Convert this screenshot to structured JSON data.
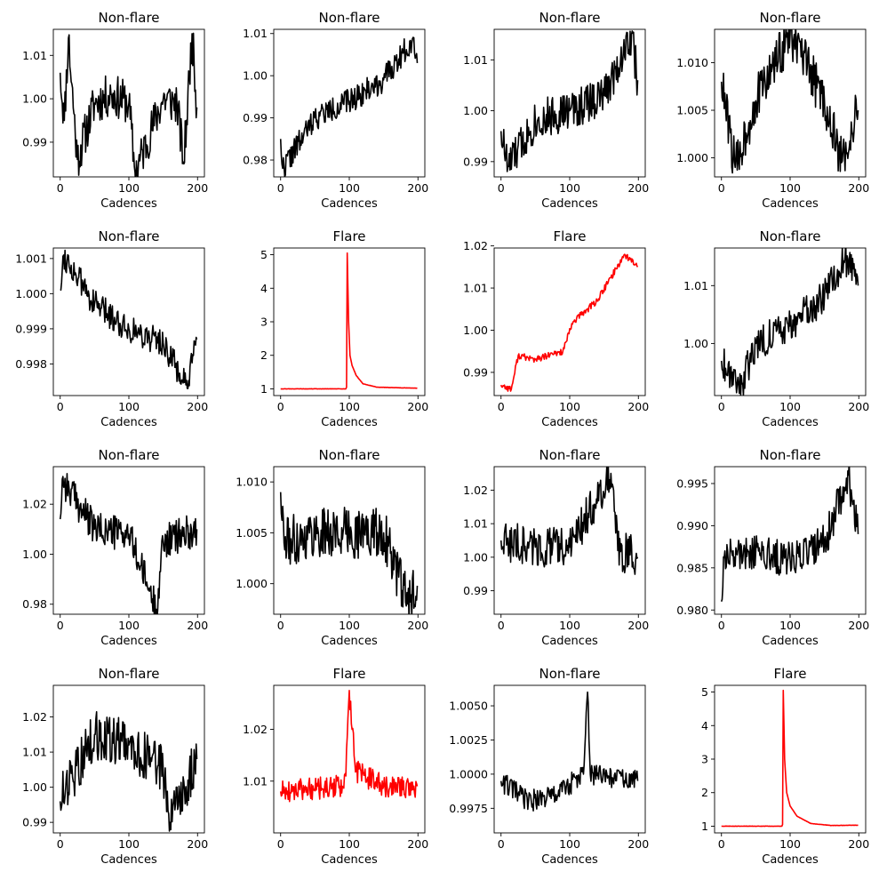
{
  "chart_data": [
    {
      "type": "line",
      "title": "Non-flare",
      "xlabel": "Cadences",
      "color": "#000000",
      "xlim": [
        -10,
        210
      ],
      "ylim": [
        0.982,
        1.016
      ],
      "xticks": [
        0,
        100,
        200
      ],
      "yticks": [
        {
          "v": 0.99,
          "label": "0.99"
        },
        {
          "v": 1.0,
          "label": "1.00"
        },
        {
          "v": 1.01,
          "label": "1.01"
        }
      ],
      "x_range": [
        0,
        199
      ],
      "keypoints": [
        [
          0,
          1.006
        ],
        [
          6,
          0.995
        ],
        [
          12,
          1.014
        ],
        [
          25,
          0.986
        ],
        [
          50,
          0.999
        ],
        [
          75,
          1.001
        ],
        [
          100,
          0.999
        ],
        [
          109,
          0.983
        ],
        [
          150,
          1.0
        ],
        [
          170,
          0.999
        ],
        [
          180,
          0.985
        ],
        [
          192,
          1.015
        ],
        [
          199,
          0.998
        ]
      ],
      "noise": 0.005,
      "seed": 11
    },
    {
      "type": "line",
      "title": "Non-flare",
      "xlabel": "Cadences",
      "color": "#000000",
      "xlim": [
        -10,
        210
      ],
      "ylim": [
        0.976,
        1.011
      ],
      "xticks": [
        0,
        100,
        200
      ],
      "yticks": [
        {
          "v": 0.98,
          "label": "0.98"
        },
        {
          "v": 0.99,
          "label": "0.99"
        },
        {
          "v": 1.0,
          "label": "1.00"
        },
        {
          "v": 1.01,
          "label": "1.01"
        }
      ],
      "x_range": [
        0,
        199
      ],
      "keypoints": [
        [
          0,
          0.985
        ],
        [
          3,
          0.978
        ],
        [
          50,
          0.99
        ],
        [
          100,
          0.994
        ],
        [
          150,
          0.999
        ],
        [
          194,
          1.009
        ],
        [
          199,
          1.003
        ]
      ],
      "noise": 0.003,
      "seed": 22
    },
    {
      "type": "line",
      "title": "Non-flare",
      "xlabel": "Cadences",
      "color": "#000000",
      "xlim": [
        -10,
        210
      ],
      "ylim": [
        0.987,
        1.016
      ],
      "xticks": [
        0,
        100,
        200
      ],
      "yticks": [
        {
          "v": 0.99,
          "label": "0.99"
        },
        {
          "v": 1.0,
          "label": "1.00"
        },
        {
          "v": 1.01,
          "label": "1.01"
        }
      ],
      "x_range": [
        0,
        199
      ],
      "keypoints": [
        [
          0,
          0.996
        ],
        [
          10,
          0.989
        ],
        [
          50,
          0.998
        ],
        [
          100,
          1.0
        ],
        [
          150,
          1.003
        ],
        [
          190,
          1.015
        ],
        [
          199,
          1.006
        ]
      ],
      "noise": 0.004,
      "seed": 33
    },
    {
      "type": "line",
      "title": "Non-flare",
      "xlabel": "Cadences",
      "color": "#000000",
      "xlim": [
        -10,
        210
      ],
      "ylim": [
        0.998,
        1.0135
      ],
      "xticks": [
        0,
        100,
        200
      ],
      "yticks": [
        {
          "v": 1.0,
          "label": "1.000"
        },
        {
          "v": 1.005,
          "label": "1.005"
        },
        {
          "v": 1.01,
          "label": "1.010"
        }
      ],
      "x_range": [
        0,
        199
      ],
      "keypoints": [
        [
          0,
          1.008
        ],
        [
          20,
          0.999
        ],
        [
          50,
          1.006
        ],
        [
          100,
          1.013
        ],
        [
          150,
          1.006
        ],
        [
          175,
          0.9995
        ],
        [
          199,
          1.005
        ]
      ],
      "noise": 0.0025,
      "seed": 44
    },
    {
      "type": "line",
      "title": "Non-flare",
      "xlabel": "Cadences",
      "color": "#000000",
      "xlim": [
        -10,
        210
      ],
      "ylim": [
        0.9971,
        1.0013
      ],
      "xticks": [
        0,
        100,
        200
      ],
      "yticks": [
        {
          "v": 0.998,
          "label": "0.998"
        },
        {
          "v": 0.999,
          "label": "0.999"
        },
        {
          "v": 1.0,
          "label": "1.000"
        },
        {
          "v": 1.001,
          "label": "1.001"
        }
      ],
      "x_range": [
        0,
        199
      ],
      "keypoints": [
        [
          0,
          1.0001
        ],
        [
          5,
          1.0011
        ],
        [
          50,
          0.9997
        ],
        [
          100,
          0.999
        ],
        [
          150,
          0.9986
        ],
        [
          185,
          0.9973
        ],
        [
          199,
          0.9987
        ]
      ],
      "noise": 0.0004,
      "seed": 55
    },
    {
      "type": "line",
      "title": "Flare",
      "xlabel": "Cadences",
      "color": "#ff0000",
      "xlim": [
        -10,
        210
      ],
      "ylim": [
        0.8,
        5.2
      ],
      "xticks": [
        0,
        100,
        200
      ],
      "yticks": [
        {
          "v": 1,
          "label": "1"
        },
        {
          "v": 2,
          "label": "2"
        },
        {
          "v": 3,
          "label": "3"
        },
        {
          "v": 4,
          "label": "4"
        },
        {
          "v": 5,
          "label": "5"
        }
      ],
      "x_range": [
        0,
        199
      ],
      "keypoints": [
        [
          0,
          1.0
        ],
        [
          95,
          1.0
        ],
        [
          96,
          1.05
        ],
        [
          97,
          5.05
        ],
        [
          99,
          3.0
        ],
        [
          101,
          2.0
        ],
        [
          104,
          1.7
        ],
        [
          110,
          1.4
        ],
        [
          120,
          1.15
        ],
        [
          140,
          1.05
        ],
        [
          199,
          1.02
        ]
      ],
      "noise": 0.004,
      "seed": 66
    },
    {
      "type": "line",
      "title": "Flare",
      "xlabel": "Cadences",
      "color": "#ff0000",
      "xlim": [
        -10,
        210
      ],
      "ylim": [
        0.9845,
        1.0195
      ],
      "xticks": [
        0,
        100,
        200
      ],
      "yticks": [
        {
          "v": 0.99,
          "label": "0.99"
        },
        {
          "v": 1.0,
          "label": "1.00"
        },
        {
          "v": 1.01,
          "label": "1.01"
        },
        {
          "v": 1.02,
          "label": "1.02"
        }
      ],
      "x_range": [
        0,
        199
      ],
      "keypoints": [
        [
          0,
          0.987
        ],
        [
          15,
          0.986
        ],
        [
          25,
          0.994
        ],
        [
          50,
          0.993
        ],
        [
          90,
          0.995
        ],
        [
          105,
          1.002
        ],
        [
          140,
          1.007
        ],
        [
          180,
          1.018
        ],
        [
          199,
          1.015
        ]
      ],
      "noise": 0.0008,
      "seed": 77
    },
    {
      "type": "line",
      "title": "Non-flare",
      "xlabel": "Cadences",
      "color": "#000000",
      "xlim": [
        -10,
        210
      ],
      "ylim": [
        0.991,
        1.0165
      ],
      "xticks": [
        0,
        100,
        200
      ],
      "yticks": [
        {
          "v": 1.0,
          "label": "1.00"
        },
        {
          "v": 1.01,
          "label": "1.01"
        }
      ],
      "x_range": [
        0,
        199
      ],
      "keypoints": [
        [
          0,
          0.997
        ],
        [
          30,
          0.993
        ],
        [
          50,
          1.0
        ],
        [
          100,
          1.003
        ],
        [
          150,
          1.008
        ],
        [
          180,
          1.015
        ],
        [
          199,
          1.01
        ]
      ],
      "noise": 0.003,
      "seed": 88
    },
    {
      "type": "line",
      "title": "Non-flare",
      "xlabel": "Cadences",
      "color": "#000000",
      "xlim": [
        -10,
        210
      ],
      "ylim": [
        0.976,
        1.035
      ],
      "xticks": [
        0,
        100,
        200
      ],
      "yticks": [
        {
          "v": 0.98,
          "label": "0.98"
        },
        {
          "v": 1.0,
          "label": "1.00"
        },
        {
          "v": 1.02,
          "label": "1.02"
        }
      ],
      "x_range": [
        0,
        199
      ],
      "keypoints": [
        [
          0,
          1.014
        ],
        [
          3,
          1.03
        ],
        [
          50,
          1.01
        ],
        [
          100,
          1.008
        ],
        [
          140,
          0.978
        ],
        [
          150,
          1.005
        ],
        [
          199,
          1.01
        ]
      ],
      "noise": 0.007,
      "seed": 99
    },
    {
      "type": "line",
      "title": "Non-flare",
      "xlabel": "Cadences",
      "color": "#000000",
      "xlim": [
        -10,
        210
      ],
      "ylim": [
        0.997,
        1.0115
      ],
      "xticks": [
        0,
        100,
        200
      ],
      "yticks": [
        {
          "v": 1.0,
          "label": "1.000"
        },
        {
          "v": 1.005,
          "label": "1.005"
        },
        {
          "v": 1.01,
          "label": "1.010"
        }
      ],
      "x_range": [
        0,
        199
      ],
      "keypoints": [
        [
          0,
          1.009
        ],
        [
          5,
          1.004
        ],
        [
          50,
          1.005
        ],
        [
          100,
          1.005
        ],
        [
          150,
          1.005
        ],
        [
          185,
          0.998
        ],
        [
          199,
          0.9998
        ]
      ],
      "noise": 0.0025,
      "seed": 111
    },
    {
      "type": "line",
      "title": "Non-flare",
      "xlabel": "Cadences",
      "color": "#000000",
      "xlim": [
        -10,
        210
      ],
      "ylim": [
        0.983,
        1.027
      ],
      "xticks": [
        0,
        100,
        200
      ],
      "yticks": [
        {
          "v": 0.99,
          "label": "0.99"
        },
        {
          "v": 1.0,
          "label": "1.00"
        },
        {
          "v": 1.01,
          "label": "1.01"
        },
        {
          "v": 1.02,
          "label": "1.02"
        }
      ],
      "x_range": [
        0,
        199
      ],
      "keypoints": [
        [
          0,
          1.005
        ],
        [
          50,
          1.003
        ],
        [
          100,
          1.003
        ],
        [
          160,
          1.025
        ],
        [
          170,
          1.002
        ],
        [
          199,
          1.0
        ]
      ],
      "noise": 0.006,
      "seed": 122
    },
    {
      "type": "line",
      "title": "Non-flare",
      "xlabel": "Cadences",
      "color": "#000000",
      "xlim": [
        -10,
        210
      ],
      "ylim": [
        0.9795,
        0.997
      ],
      "xticks": [
        0,
        100,
        200
      ],
      "yticks": [
        {
          "v": 0.98,
          "label": "0.980"
        },
        {
          "v": 0.985,
          "label": "0.985"
        },
        {
          "v": 0.99,
          "label": "0.990"
        },
        {
          "v": 0.995,
          "label": "0.995"
        }
      ],
      "x_range": [
        0,
        199
      ],
      "keypoints": [
        [
          0,
          0.981
        ],
        [
          5,
          0.987
        ],
        [
          50,
          0.987
        ],
        [
          100,
          0.986
        ],
        [
          150,
          0.988
        ],
        [
          185,
          0.996
        ],
        [
          199,
          0.989
        ]
      ],
      "noise": 0.0022,
      "seed": 133
    },
    {
      "type": "line",
      "title": "Non-flare",
      "xlabel": "Cadences",
      "color": "#000000",
      "xlim": [
        -10,
        210
      ],
      "ylim": [
        0.987,
        1.029
      ],
      "xticks": [
        0,
        100,
        200
      ],
      "yticks": [
        {
          "v": 0.99,
          "label": "0.99"
        },
        {
          "v": 1.0,
          "label": "1.00"
        },
        {
          "v": 1.01,
          "label": "1.01"
        },
        {
          "v": 1.02,
          "label": "1.02"
        }
      ],
      "x_range": [
        0,
        199
      ],
      "keypoints": [
        [
          0,
          0.996
        ],
        [
          50,
          1.015
        ],
        [
          100,
          1.012
        ],
        [
          150,
          1.005
        ],
        [
          160,
          0.99
        ],
        [
          199,
          1.008
        ]
      ],
      "noise": 0.007,
      "seed": 144
    },
    {
      "type": "line",
      "title": "Flare",
      "xlabel": "Cadences",
      "color": "#ff0000",
      "xlim": [
        -10,
        210
      ],
      "ylim": [
        1.0,
        1.0285
      ],
      "xticks": [
        0,
        100,
        200
      ],
      "yticks": [
        {
          "v": 1.01,
          "label": "1.01"
        },
        {
          "v": 1.02,
          "label": "1.02"
        }
      ],
      "x_range": [
        0,
        199
      ],
      "keypoints": [
        [
          0,
          1.008
        ],
        [
          90,
          1.009
        ],
        [
          95,
          1.011
        ],
        [
          100,
          1.0275
        ],
        [
          104,
          1.02
        ],
        [
          110,
          1.012
        ],
        [
          150,
          1.009
        ],
        [
          199,
          1.009
        ]
      ],
      "noise": 0.0022,
      "seed": 155
    },
    {
      "type": "line",
      "title": "Non-flare",
      "xlabel": "Cadences",
      "color": "#000000",
      "xlim": [
        -10,
        210
      ],
      "ylim": [
        0.9957,
        1.0065
      ],
      "xticks": [
        0,
        100,
        200
      ],
      "yticks": [
        {
          "v": 0.9975,
          "label": "0.9975"
        },
        {
          "v": 1.0,
          "label": "1.0000"
        },
        {
          "v": 1.0025,
          "label": "1.0025"
        },
        {
          "v": 1.005,
          "label": "1.0050"
        }
      ],
      "x_range": [
        0,
        199
      ],
      "keypoints": [
        [
          0,
          0.9995
        ],
        [
          40,
          0.998
        ],
        [
          80,
          0.9985
        ],
        [
          120,
          1.0
        ],
        [
          126,
          1.006
        ],
        [
          130,
          1.0
        ],
        [
          199,
          0.9995
        ]
      ],
      "noise": 0.0008,
      "seed": 166
    },
    {
      "type": "line",
      "title": "Flare",
      "xlabel": "Cadences",
      "color": "#ff0000",
      "xlim": [
        -10,
        210
      ],
      "ylim": [
        0.8,
        5.2
      ],
      "xticks": [
        0,
        100,
        200
      ],
      "yticks": [
        {
          "v": 1,
          "label": "1"
        },
        {
          "v": 2,
          "label": "2"
        },
        {
          "v": 3,
          "label": "3"
        },
        {
          "v": 4,
          "label": "4"
        },
        {
          "v": 5,
          "label": "5"
        }
      ],
      "x_range": [
        0,
        199
      ],
      "keypoints": [
        [
          0,
          1.0
        ],
        [
          88,
          1.0
        ],
        [
          89,
          1.05
        ],
        [
          90,
          5.05
        ],
        [
          92,
          3.0
        ],
        [
          95,
          2.0
        ],
        [
          100,
          1.6
        ],
        [
          110,
          1.3
        ],
        [
          130,
          1.08
        ],
        [
          160,
          1.02
        ],
        [
          199,
          1.03
        ]
      ],
      "noise": 0.004,
      "seed": 177
    }
  ]
}
